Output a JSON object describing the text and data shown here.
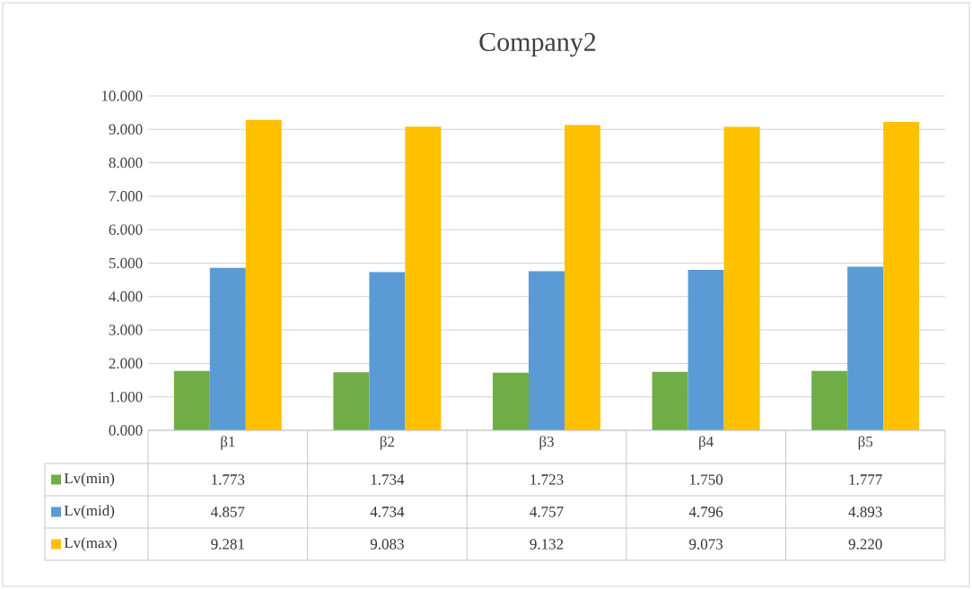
{
  "chart_data": {
    "type": "bar",
    "title": "Company2",
    "categories": [
      "β1",
      "β2",
      "β3",
      "β4",
      "β5"
    ],
    "series": [
      {
        "name": "Lv(min)",
        "color": "#70ad47",
        "values": [
          1.773,
          1.734,
          1.723,
          1.75,
          1.777
        ],
        "value_labels": [
          "1.773",
          "1.734",
          "1.723",
          "1.750",
          "1.777"
        ]
      },
      {
        "name": "Lv(mid)",
        "color": "#5b9bd5",
        "values": [
          4.857,
          4.734,
          4.757,
          4.796,
          4.893
        ],
        "value_labels": [
          "4.857",
          "4.734",
          "4.757",
          "4.796",
          "4.893"
        ]
      },
      {
        "name": "Lv(max)",
        "color": "#ffc000",
        "values": [
          9.281,
          9.083,
          9.132,
          9.073,
          9.22
        ],
        "value_labels": [
          "9.281",
          "9.083",
          "9.132",
          "9.073",
          "9.220"
        ]
      }
    ],
    "ylim": [
      0,
      10
    ],
    "yticks": [
      {
        "value": 0,
        "label": "0.000"
      },
      {
        "value": 1,
        "label": "1.000"
      },
      {
        "value": 2,
        "label": "2.000"
      },
      {
        "value": 3,
        "label": "3.000"
      },
      {
        "value": 4,
        "label": "4.000"
      },
      {
        "value": 5,
        "label": "5.000"
      },
      {
        "value": 6,
        "label": "6.000"
      },
      {
        "value": 7,
        "label": "7.000"
      },
      {
        "value": 8,
        "label": "8.000"
      },
      {
        "value": 9,
        "label": "9.000"
      },
      {
        "value": 10,
        "label": "10.000"
      }
    ],
    "grid": "y",
    "legend": "bottom"
  }
}
